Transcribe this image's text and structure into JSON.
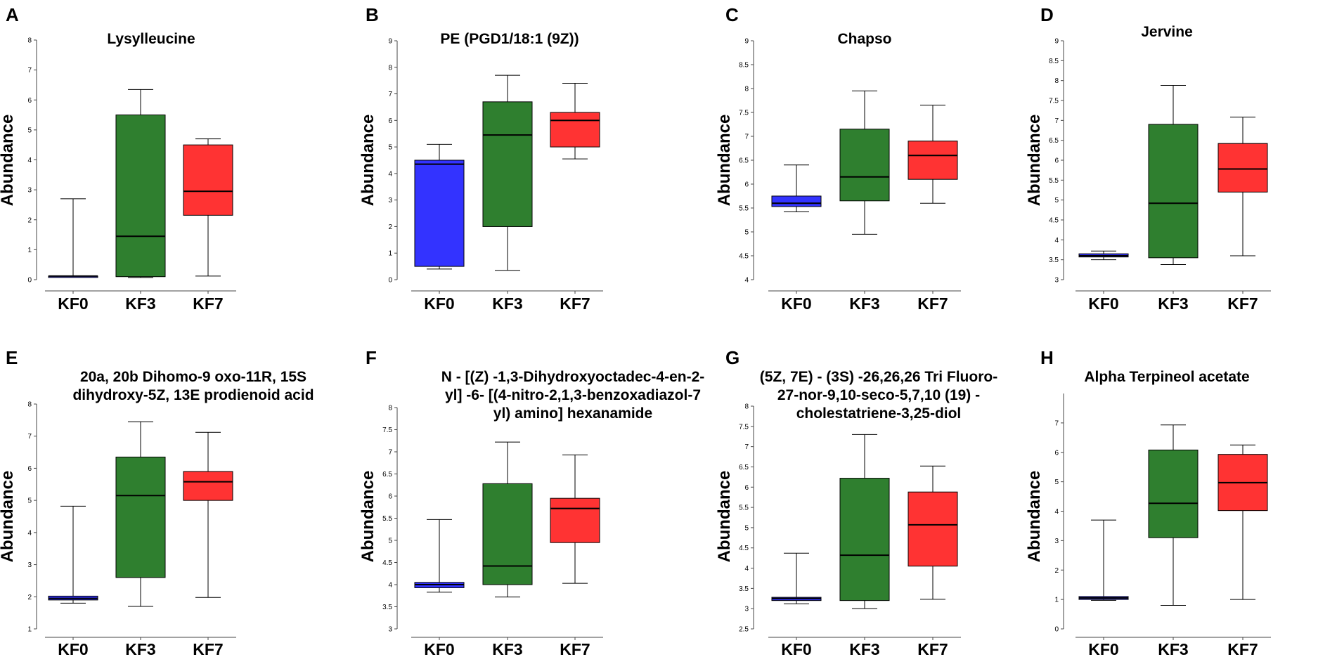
{
  "figure": {
    "colors": {
      "KF0": "#3333ff",
      "KF3": "#2f7f2f",
      "KF7": "#ff3333",
      "line": "#000000"
    }
  },
  "chart_data": [
    {
      "panel": "A",
      "type": "boxplot",
      "title": "Lysylleucine",
      "title_lines": [
        "Lysylleucine"
      ],
      "ylabel": "Abundance",
      "categories": [
        "KF0",
        "KF3",
        "KF7"
      ],
      "ylim": [
        0,
        8
      ],
      "yticks": [
        "0",
        "1",
        "2",
        "3",
        "4",
        "5",
        "6",
        "7",
        "8"
      ],
      "boxes": [
        {
          "group": "KF0",
          "min": 0.1,
          "q1": 0.1,
          "median": 0.12,
          "q3": 0.12,
          "max": 2.7
        },
        {
          "group": "KF3",
          "min": 0.07,
          "q1": 0.1,
          "median": 1.45,
          "q3": 5.5,
          "max": 6.35
        },
        {
          "group": "KF7",
          "min": 0.12,
          "q1": 2.15,
          "median": 2.95,
          "q3": 4.5,
          "max": 4.7
        }
      ]
    },
    {
      "panel": "B",
      "type": "boxplot",
      "title": "PE (PGD1/18:1 (9Z))",
      "title_lines": [
        "PE (PGD1/18:1 (9Z))"
      ],
      "ylabel": "Abundance",
      "categories": [
        "KF0",
        "KF3",
        "KF7"
      ],
      "ylim": [
        0,
        9
      ],
      "yticks": [
        "0",
        "1",
        "2",
        "3",
        "4",
        "5",
        "6",
        "7",
        "8",
        "9"
      ],
      "boxes": [
        {
          "group": "KF0",
          "min": 0.4,
          "q1": 0.5,
          "median": 4.35,
          "q3": 4.5,
          "max": 5.1
        },
        {
          "group": "KF3",
          "min": 0.35,
          "q1": 2.0,
          "median": 5.45,
          "q3": 6.7,
          "max": 7.7
        },
        {
          "group": "KF7",
          "min": 4.55,
          "q1": 5.0,
          "median": 6.0,
          "q3": 6.3,
          "max": 7.4
        }
      ]
    },
    {
      "panel": "C",
      "type": "boxplot",
      "title": "Chapso",
      "title_lines": [
        "Chapso"
      ],
      "ylabel": "Abundance",
      "categories": [
        "KF0",
        "KF3",
        "KF7"
      ],
      "ylim": [
        4,
        9
      ],
      "yticks": [
        "4",
        "4.5",
        "5",
        "5.5",
        "6",
        "6.5",
        "7",
        "7.5",
        "8",
        "8.5",
        "9"
      ],
      "boxes": [
        {
          "group": "KF0",
          "min": 5.42,
          "q1": 5.53,
          "median": 5.6,
          "q3": 5.75,
          "max": 6.4
        },
        {
          "group": "KF3",
          "min": 4.95,
          "q1": 5.65,
          "median": 6.15,
          "q3": 7.15,
          "max": 7.95
        },
        {
          "group": "KF7",
          "min": 5.6,
          "q1": 6.1,
          "median": 6.6,
          "q3": 6.9,
          "max": 7.65
        }
      ]
    },
    {
      "panel": "D",
      "type": "boxplot",
      "title": "Jervine",
      "title_lines": [
        "Jervine"
      ],
      "ylabel": "Abundance",
      "categories": [
        "KF0",
        "KF3",
        "KF7"
      ],
      "ylim": [
        3,
        9
      ],
      "yticks": [
        "3",
        "3.5",
        "4",
        "4.5",
        "5",
        "5.5",
        "6",
        "6.5",
        "7",
        "7.5",
        "8",
        "8.5",
        "9"
      ],
      "boxes": [
        {
          "group": "KF0",
          "min": 3.5,
          "q1": 3.57,
          "median": 3.6,
          "q3": 3.65,
          "max": 3.72
        },
        {
          "group": "KF3",
          "min": 3.38,
          "q1": 3.55,
          "median": 4.92,
          "q3": 6.9,
          "max": 7.88
        },
        {
          "group": "KF7",
          "min": 3.6,
          "q1": 5.2,
          "median": 5.78,
          "q3": 6.42,
          "max": 7.08
        }
      ]
    },
    {
      "panel": "E",
      "type": "boxplot",
      "title": "20a, 20b Dihomo-9 oxo-11R, 15S dihydroxy-5Z, 13E prodienoid acid",
      "title_lines": [
        "20a, 20b Dihomo-9 oxo-11R, 15S",
        "dihydroxy-5Z, 13E prodienoid acid"
      ],
      "ylabel": "Abundance",
      "categories": [
        "KF0",
        "KF3",
        "KF7"
      ],
      "ylim": [
        1,
        8
      ],
      "yticks": [
        "1",
        "2",
        "3",
        "4",
        "5",
        "6",
        "7",
        "8"
      ],
      "boxes": [
        {
          "group": "KF0",
          "min": 1.8,
          "q1": 1.9,
          "median": 1.95,
          "q3": 2.02,
          "max": 4.82
        },
        {
          "group": "KF3",
          "min": 1.7,
          "q1": 2.6,
          "median": 5.15,
          "q3": 6.35,
          "max": 7.45
        },
        {
          "group": "KF7",
          "min": 1.98,
          "q1": 5.0,
          "median": 5.58,
          "q3": 5.9,
          "max": 7.12
        }
      ]
    },
    {
      "panel": "F",
      "type": "boxplot",
      "title": "N - [(Z) -1,3-Dihydroxyoctadec-4-en-2-yl] -6- [(4-nitro-2,1,3-benzoxadiazol-7 yl) amino] hexanamide",
      "title_lines": [
        "N - [(Z) -1,3-Dihydroxyoctadec-4-en-2-",
        "yl] -6- [(4-nitro-2,1,3-benzoxadiazol-7",
        "yl) amino] hexanamide"
      ],
      "ylabel": "Abundance",
      "categories": [
        "KF0",
        "KF3",
        "KF7"
      ],
      "ylim": [
        3,
        8
      ],
      "yticks": [
        "3",
        "3.5",
        "4",
        "4.5",
        "5",
        "5.5",
        "6",
        "6.5",
        "7",
        "7.5",
        "8"
      ],
      "boxes": [
        {
          "group": "KF0",
          "min": 3.83,
          "q1": 3.93,
          "median": 4.0,
          "q3": 4.05,
          "max": 5.47
        },
        {
          "group": "KF3",
          "min": 3.72,
          "q1": 4.0,
          "median": 4.42,
          "q3": 6.28,
          "max": 7.22
        },
        {
          "group": "KF7",
          "min": 4.03,
          "q1": 4.95,
          "median": 5.72,
          "q3": 5.95,
          "max": 6.93
        }
      ]
    },
    {
      "panel": "G",
      "type": "boxplot",
      "title": "(5Z, 7E) - (3S) -26,26,26 Tri Fluoro-27-nor-9,10-seco-5,7,10 (19) -cholestatriene-3,25-diol",
      "title_lines": [
        "(5Z, 7E) - (3S) -26,26,26 Tri Fluoro-",
        "27-nor-9,10-seco-5,7,10 (19) -",
        "cholestatriene-3,25-diol"
      ],
      "ylabel": "Abundance",
      "categories": [
        "KF0",
        "KF3",
        "KF7"
      ],
      "ylim": [
        2.5,
        8
      ],
      "yticks": [
        "2.5",
        "3",
        "3.5",
        "4",
        "4.5",
        "5",
        "5.5",
        "6",
        "6.5",
        "7",
        "7.5",
        "8"
      ],
      "boxes": [
        {
          "group": "KF0",
          "min": 3.12,
          "q1": 3.2,
          "median": 3.25,
          "q3": 3.28,
          "max": 4.37
        },
        {
          "group": "KF3",
          "min": 3.0,
          "q1": 3.2,
          "median": 4.32,
          "q3": 6.22,
          "max": 7.3
        },
        {
          "group": "KF7",
          "min": 3.23,
          "q1": 4.05,
          "median": 5.07,
          "q3": 5.88,
          "max": 6.52
        }
      ]
    },
    {
      "panel": "H",
      "type": "boxplot",
      "title": "Alpha Terpineol acetate",
      "title_lines": [
        "Alpha Terpineol acetate"
      ],
      "ylabel": "Abundance",
      "categories": [
        "KF0",
        "KF3",
        "KF7"
      ],
      "ylim": [
        0,
        8
      ],
      "yticks": [
        "0",
        "1",
        "2",
        "3",
        "4",
        "5",
        "6",
        "7"
      ],
      "boxes": [
        {
          "group": "KF0",
          "min": 0.97,
          "q1": 1.0,
          "median": 1.05,
          "q3": 1.1,
          "max": 3.7
        },
        {
          "group": "KF3",
          "min": 0.8,
          "q1": 3.1,
          "median": 4.27,
          "q3": 6.08,
          "max": 6.93
        },
        {
          "group": "KF7",
          "min": 1.0,
          "q1": 4.02,
          "median": 4.97,
          "q3": 5.93,
          "max": 6.25
        }
      ]
    }
  ]
}
